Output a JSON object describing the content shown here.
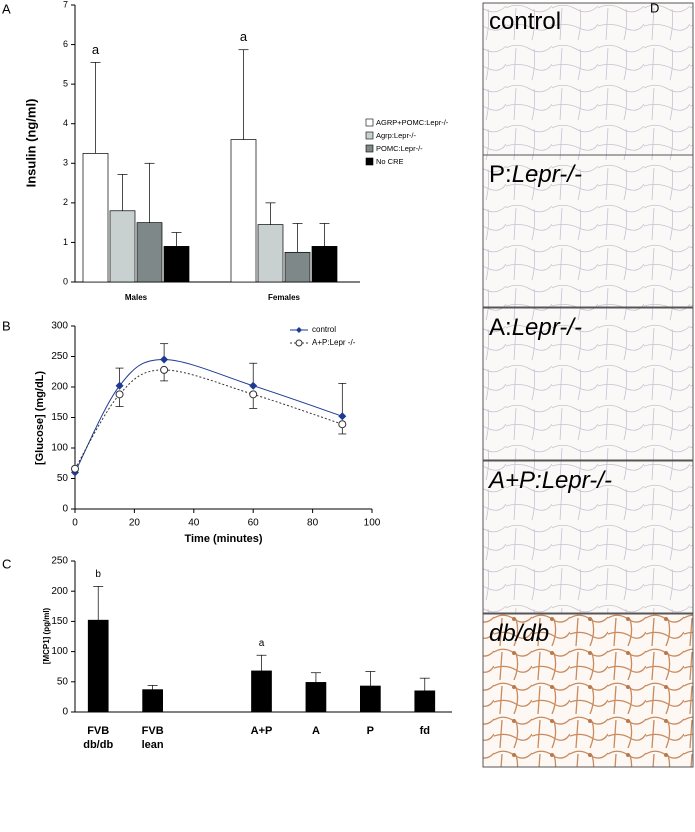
{
  "chart_data": [
    {
      "type": "bar",
      "panel_label": "A",
      "ylabel": "Insulin (ng/ml)",
      "categories": [
        "Males",
        "Females"
      ],
      "series": [
        {
          "name": "AGRP+POMC:Lepr-/-",
          "color": "#ffffff",
          "values": [
            3.25,
            3.6
          ],
          "errors": [
            2.3,
            2.27
          ]
        },
        {
          "name": "Agrp:Lepr-/-",
          "color": "#c8d0d0",
          "values": [
            1.8,
            1.45
          ],
          "errors": [
            0.92,
            0.55
          ]
        },
        {
          "name": "POMC:Lepr-/-",
          "color": "#7f8888",
          "values": [
            1.5,
            0.75
          ],
          "errors": [
            1.5,
            0.73
          ]
        },
        {
          "name": "No CRE",
          "color": "#000000",
          "values": [
            0.9,
            0.9
          ],
          "errors": [
            0.35,
            0.58
          ]
        }
      ],
      "ylim": [
        0,
        7
      ],
      "yticks": [
        0,
        1,
        2,
        3,
        4,
        5,
        6,
        7
      ],
      "annotations": [
        {
          "text": "a",
          "category": "Males"
        },
        {
          "text": "a",
          "category": "Females"
        }
      ]
    },
    {
      "type": "line",
      "panel_label": "B",
      "ylabel": "[Glucose] (mg/dL)",
      "xlabel": "Time (minutes)",
      "x": [
        0,
        15,
        30,
        60,
        90
      ],
      "series": [
        {
          "name": "control",
          "color": "#1f3a93",
          "marker": "diamond",
          "dashed": false,
          "values": [
            60,
            202,
            245,
            202,
            152
          ],
          "errors": [
            null,
            29,
            26,
            37,
            54
          ],
          "error_direction": "up"
        },
        {
          "name": "A+P:Lepr -/-",
          "color": "#333333",
          "marker": "circle-open",
          "dashed": true,
          "values": [
            66,
            188,
            228,
            188,
            139
          ],
          "errors": [
            null,
            20,
            18,
            23,
            16
          ],
          "error_direction": "down"
        }
      ],
      "xlim": [
        0,
        100
      ],
      "xticks": [
        0,
        20,
        40,
        60,
        80,
        100
      ],
      "ylim": [
        0,
        300
      ],
      "yticks": [
        0,
        50,
        100,
        150,
        200,
        250,
        300
      ]
    },
    {
      "type": "bar",
      "panel_label": "C",
      "ylabel": "[MCP1] (pg/ml)",
      "categories": [
        "FVB\ndb/db",
        "FVB\nlean",
        null,
        "A+P",
        "A",
        "P",
        "fd"
      ],
      "series": [
        {
          "color": "#000000",
          "values": [
            152,
            37,
            null,
            68,
            49,
            43,
            35
          ],
          "errors": [
            56,
            7,
            null,
            26,
            16,
            24,
            21
          ]
        }
      ],
      "ylim": [
        0,
        250
      ],
      "yticks": [
        0,
        50,
        100,
        150,
        200,
        250
      ],
      "annotations": [
        {
          "text": "b",
          "category": "FVB\ndb/db"
        },
        {
          "text": "a",
          "category": "A+P"
        }
      ]
    }
  ],
  "micrographs": {
    "panel_label": "D",
    "labels": [
      {
        "parts": [
          "control"
        ],
        "italic": [
          false
        ]
      },
      {
        "parts": [
          "P:",
          "Lepr-/-"
        ],
        "italic": [
          false,
          true
        ]
      },
      {
        "parts": [
          "A:",
          "Lepr-/-"
        ],
        "italic": [
          false,
          true
        ]
      },
      {
        "parts": [
          "A+P:Lepr-/-"
        ],
        "italic": [
          true
        ]
      },
      {
        "parts": [
          "db/db"
        ],
        "italic": [
          true
        ]
      }
    ]
  }
}
